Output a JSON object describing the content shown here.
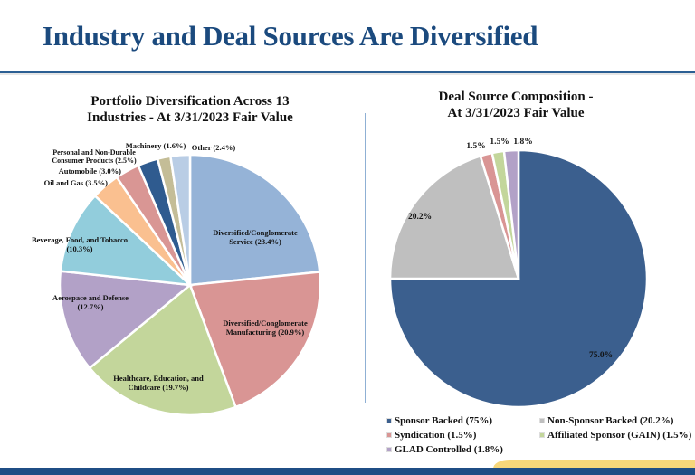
{
  "page": {
    "title": "Industry and Deal Sources Are Diversified"
  },
  "chart_data": [
    {
      "type": "pie",
      "title_line1": "Portfolio Diversification Across 13",
      "title_line2": "Industries - At 3/31/2023 Fair Value",
      "start": "12 o'clock",
      "direction": "clockwise",
      "slices": [
        {
          "name": "Diversified/Conglomerate Service",
          "value": 23.4,
          "label1": "Diversified/Conglomerate",
          "label2": "Service (23.4%)",
          "color": "#95b3d7"
        },
        {
          "name": "Diversified/Conglomerate Manufacturing",
          "value": 20.9,
          "label1": "Diversified/Conglomerate",
          "label2": "Manufacturing (20.9%)",
          "color": "#d99594"
        },
        {
          "name": "Healthcare, Education, and Childcare",
          "value": 19.7,
          "label1": "Healthcare, Education, and",
          "label2": "Childcare (19.7%)",
          "color": "#c3d69b"
        },
        {
          "name": "Aerospace and Defense",
          "value": 12.7,
          "label1": "Aerospace and Defense",
          "label2": "(12.7%)",
          "color": "#b2a1c7"
        },
        {
          "name": "Beverage, Food, and Tobacco",
          "value": 10.3,
          "label1": "Beverage, Food, and Tobacco",
          "label2": "(10.3%)",
          "color": "#92cddc"
        },
        {
          "name": "Oil and Gas",
          "value": 3.5,
          "label1": "Oil and Gas (3.5%)",
          "label2": "",
          "color": "#fac090"
        },
        {
          "name": "Automobile",
          "value": 3.0,
          "label1": "Automobile (3.0%)",
          "label2": "",
          "color": "#d99694"
        },
        {
          "name": "Personal and Non-Durable Consumer Products",
          "value": 2.5,
          "label1": "Personal and Non-Durable",
          "label2": "Consumer Products (2.5%)",
          "color": "#2f5b8f"
        },
        {
          "name": "Machinery",
          "value": 1.6,
          "label1": "Machinery (1.6%)",
          "label2": "",
          "color": "#c4bd97"
        },
        {
          "name": "Other",
          "value": 2.4,
          "label1": "Other (2.4%)",
          "label2": "",
          "color": "#b9cde5"
        }
      ]
    },
    {
      "type": "pie",
      "title_line1": "Deal Source Composition -",
      "title_line2": "At 3/31/2023 Fair Value",
      "start": "12 o'clock",
      "direction": "clockwise",
      "legend": "bottom",
      "slices": [
        {
          "name": "Sponsor Backed",
          "value": 75.0,
          "label": "75.0%",
          "legend": "Sponsor Backed (75%)",
          "color": "#3b5f8e"
        },
        {
          "name": "Non-Sponsor Backed",
          "value": 20.2,
          "label": "20.2%",
          "legend": "Non-Sponsor Backed (20.2%)",
          "color": "#bfbfbf"
        },
        {
          "name": "Syndication",
          "value": 1.5,
          "label": "1.5%",
          "legend": "Syndication (1.5%)",
          "color": "#d99594"
        },
        {
          "name": "Affiliated Sponsor (GAIN)",
          "value": 1.5,
          "label": "1.5%",
          "legend": "Affiliated Sponsor (GAIN) (1.5%)",
          "color": "#c3d69b"
        },
        {
          "name": "GLAD Controlled",
          "value": 1.8,
          "label": "1.8%",
          "legend": "GLAD Controlled (1.8%)",
          "color": "#b2a1c7"
        }
      ]
    }
  ]
}
